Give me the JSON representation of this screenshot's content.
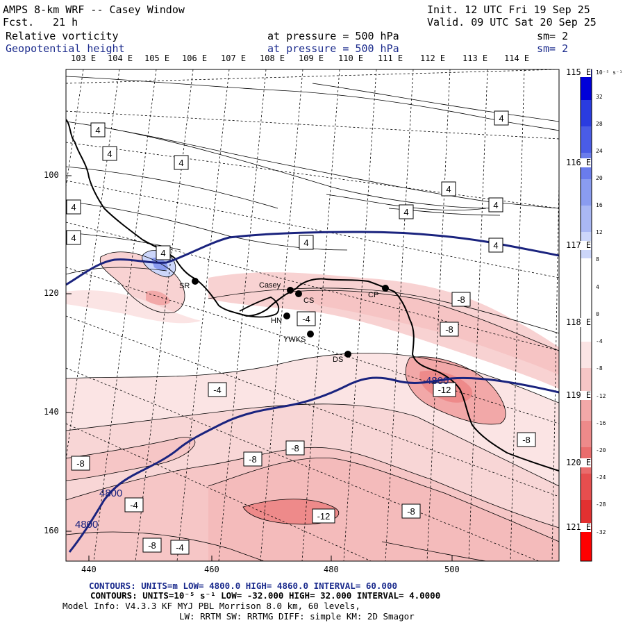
{
  "header": {
    "title": "AMPS 8-km WRF -- Casey Window",
    "forecast_label": "Fcst.",
    "forecast_hours": "21 h",
    "init": "Init. 12 UTC Fri 19 Sep 25",
    "valid": "Valid. 09 UTC Sat 20 Sep 25",
    "field1": "Relative vorticity",
    "field2": "Geopotential height",
    "pressure1": "at pressure =  500 hPa",
    "pressure2": "at pressure =  500 hPa",
    "smooth1": "sm= 2",
    "smooth2": "sm= 2"
  },
  "longitude_labels_top": [
    "103 E",
    "104 E",
    "105 E",
    "106 E",
    "107 E",
    "108 E",
    "109 E",
    "110 E",
    "111 E",
    "112 E",
    "113 E",
    "114 E"
  ],
  "longitude_labels_right": [
    "115 E",
    "116 E",
    "117 E",
    "118 E",
    "119 E",
    "120 E",
    "121 E"
  ],
  "x_axis_ticks": [
    "440",
    "460",
    "480",
    "500"
  ],
  "y_axis_ticks": [
    "100",
    "120",
    "140",
    "160"
  ],
  "colorbar": {
    "unit_label": "10⁻⁵ s⁻¹",
    "ticks": [
      "32",
      "28",
      "24",
      "20",
      "16",
      "12",
      "8",
      "4",
      "0",
      "-4",
      "-8",
      "-12",
      "-16",
      "-20",
      "-24",
      "-28",
      "-32"
    ],
    "colors": [
      "#0000d8",
      "#2a3ce0",
      "#4a5ce6",
      "#6a7cec",
      "#8a9cf0",
      "#aab8f4",
      "#ccd6fa",
      "#ffffff",
      "#ffffff",
      "#fbe4e4",
      "#f6c6c6",
      "#f2a8a8",
      "#ee8a8a",
      "#ea6c6c",
      "#e64e4e",
      "#e23030",
      "#ff0000"
    ]
  },
  "stations": [
    {
      "label": "SR"
    },
    {
      "label": "Casey"
    },
    {
      "label": "CS"
    },
    {
      "label": "CP"
    },
    {
      "label": "HN"
    },
    {
      "label": "YWKS"
    },
    {
      "label": "DS"
    }
  ],
  "vorticity_labels": [
    "4",
    "4",
    "4",
    "4",
    "4",
    "4",
    "4",
    "4",
    "4",
    "4",
    "4",
    "4",
    "-8",
    "-8",
    "-4",
    "-4",
    "-12",
    "-8",
    "-8",
    "-8",
    "-8",
    "-4",
    "-12",
    "-8",
    "-8",
    "-4"
  ],
  "height_labels": [
    "4800",
    "4800",
    "4800"
  ],
  "footer": {
    "line1": "CONTOURS:  UNITS=m  LOW=  4800.0        HIGH=  4860.0       INTERVAL=   60.000",
    "line2": "CONTOURS:  UNITS=10⁻⁵ s⁻¹  LOW= -32.000       HIGH=  32.000      INTERVAL=  4.0000",
    "line3": "Model Info: V4.3.3    KF       MYJ PBL  Morrison             8.0 km,  60 levels,",
    "line4": "LW: RRTM SW: RRTMG   DIFF: simple KM: 2D Smagor"
  }
}
